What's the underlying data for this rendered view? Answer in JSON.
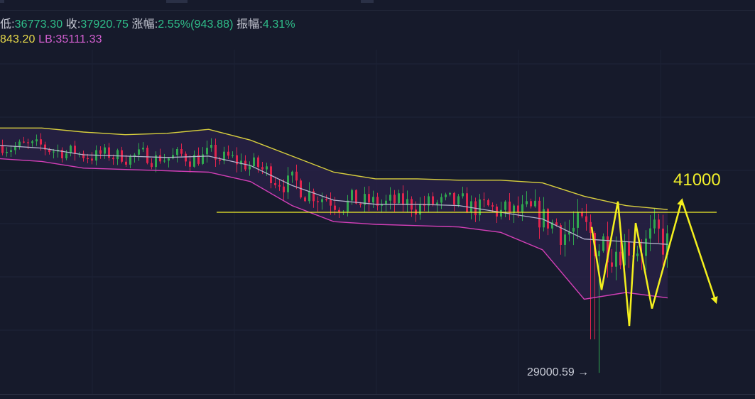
{
  "stats": {
    "low_label": "低:",
    "low_value": "36773.30",
    "close_label": "收:",
    "close_value": "37920.75",
    "change_label": "涨幅:",
    "change_value": "2.55%(943.88)",
    "amplitude_label": "振幅:",
    "amplitude_value": "4.31%"
  },
  "indicators": {
    "ub_value": "843.20",
    "lb_label": "LB:",
    "lb_value": "35111.33"
  },
  "annotations": {
    "level_label": "41000",
    "low_marker": "29000.59 →"
  },
  "colors": {
    "background": "#161a2b",
    "up_candle": "#2fa84f",
    "down_candle": "#e0244d",
    "upper_band": "#d8cf3e",
    "lower_band": "#d33fb7",
    "mid_band": "#b4b4cc",
    "band_fill": "#2a2248",
    "level_line": "#f2f02a",
    "arrows": "#f4f01e"
  },
  "chart_data": {
    "type": "candlestick",
    "title": "",
    "indicator": "Bollinger Bands",
    "horizontal_level": 41000,
    "min_low": 29000.59,
    "ylim": [
      28500,
      48000
    ],
    "band_upper": [
      47300,
      47300,
      47000,
      46800,
      46900,
      47200,
      46400,
      45200,
      44000,
      43500,
      43500,
      43400,
      43400,
      43200,
      42200,
      41500,
      41200
    ],
    "band_mid": [
      46000,
      45800,
      45300,
      45200,
      45100,
      45200,
      44500,
      43000,
      41900,
      41600,
      41600,
      41500,
      41000,
      40500,
      39000,
      38800,
      38600
    ],
    "band_lower": [
      45000,
      44800,
      44300,
      44200,
      44100,
      44000,
      43300,
      41500,
      40300,
      40100,
      40000,
      39900,
      39500,
      38200,
      34500,
      35000,
      34600
    ],
    "projection_path": [
      39900,
      35200,
      41800,
      32500,
      40200,
      33800,
      41900,
      34300
    ]
  }
}
